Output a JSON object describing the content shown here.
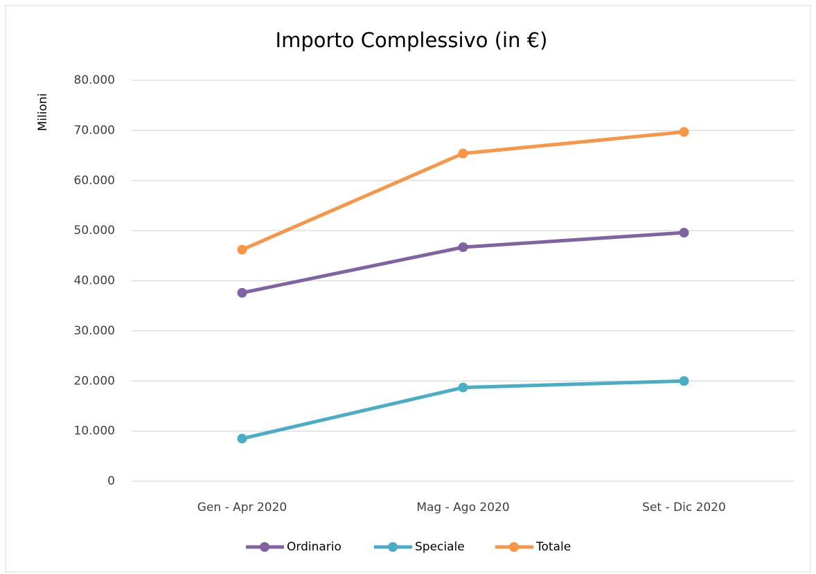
{
  "chart_data": {
    "type": "line",
    "title": "Importo Complessivo (in €)",
    "y_label": "Milioni",
    "categories": [
      "Gen - Apr 2020",
      "Mag - Ago 2020",
      "Set - Dic 2020"
    ],
    "series": [
      {
        "name": "Ordinario",
        "color": "#8064a2",
        "values": [
          37600,
          46700,
          49600
        ]
      },
      {
        "name": "Speciale",
        "color": "#4bacc6",
        "values": [
          8500,
          18700,
          20000
        ]
      },
      {
        "name": "Totale",
        "color": "#f79646",
        "values": [
          46200,
          65400,
          69700
        ]
      }
    ],
    "ylim": [
      0,
      80000
    ],
    "yticks": [
      0,
      {
        "value": 10000,
        "label": "10.000"
      },
      {
        "value": 20000,
        "label": "20.000"
      },
      {
        "value": 30000,
        "label": "30.000"
      },
      {
        "value": 40000,
        "label": "40.000"
      },
      {
        "value": 50000,
        "label": "50.000"
      },
      {
        "value": 60000,
        "label": "60.000"
      },
      {
        "value": 70000,
        "label": "70.000"
      },
      {
        "value": 80000,
        "label": "80.000"
      }
    ],
    "grid": true,
    "legend": "bottom"
  }
}
